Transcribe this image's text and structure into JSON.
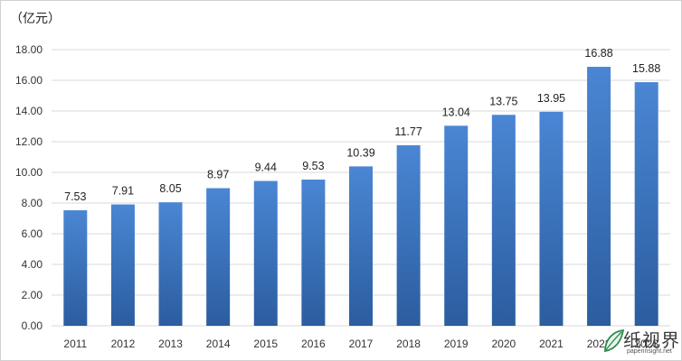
{
  "chart_data": {
    "type": "bar",
    "unit_label": "（亿元）",
    "categories": [
      "2011",
      "2012",
      "2013",
      "2014",
      "2015",
      "2016",
      "2017",
      "2018",
      "2019",
      "2020",
      "2021",
      "2022",
      "2023"
    ],
    "values": [
      7.53,
      7.91,
      8.05,
      8.97,
      9.44,
      9.53,
      10.39,
      11.77,
      13.04,
      13.75,
      13.95,
      16.88,
      15.88
    ],
    "value_labels": [
      "7.53",
      "7.91",
      "8.05",
      "8.97",
      "9.44",
      "9.53",
      "10.39",
      "11.77",
      "13.04",
      "13.75",
      "13.95",
      "16.88",
      "15.88"
    ],
    "y_ticks": [
      "0.00",
      "2.00",
      "4.00",
      "6.00",
      "8.00",
      "10.00",
      "12.00",
      "14.00",
      "16.00",
      "18.00"
    ],
    "ylim": [
      0,
      18
    ],
    "grid": true,
    "legend": "none",
    "bar_color_top": "#4a86d4",
    "bar_color_bottom": "#2b5d9f",
    "grid_color": "#d9d9d9"
  },
  "watermark": {
    "text": "纸视界",
    "url": "paperinsight.net"
  }
}
